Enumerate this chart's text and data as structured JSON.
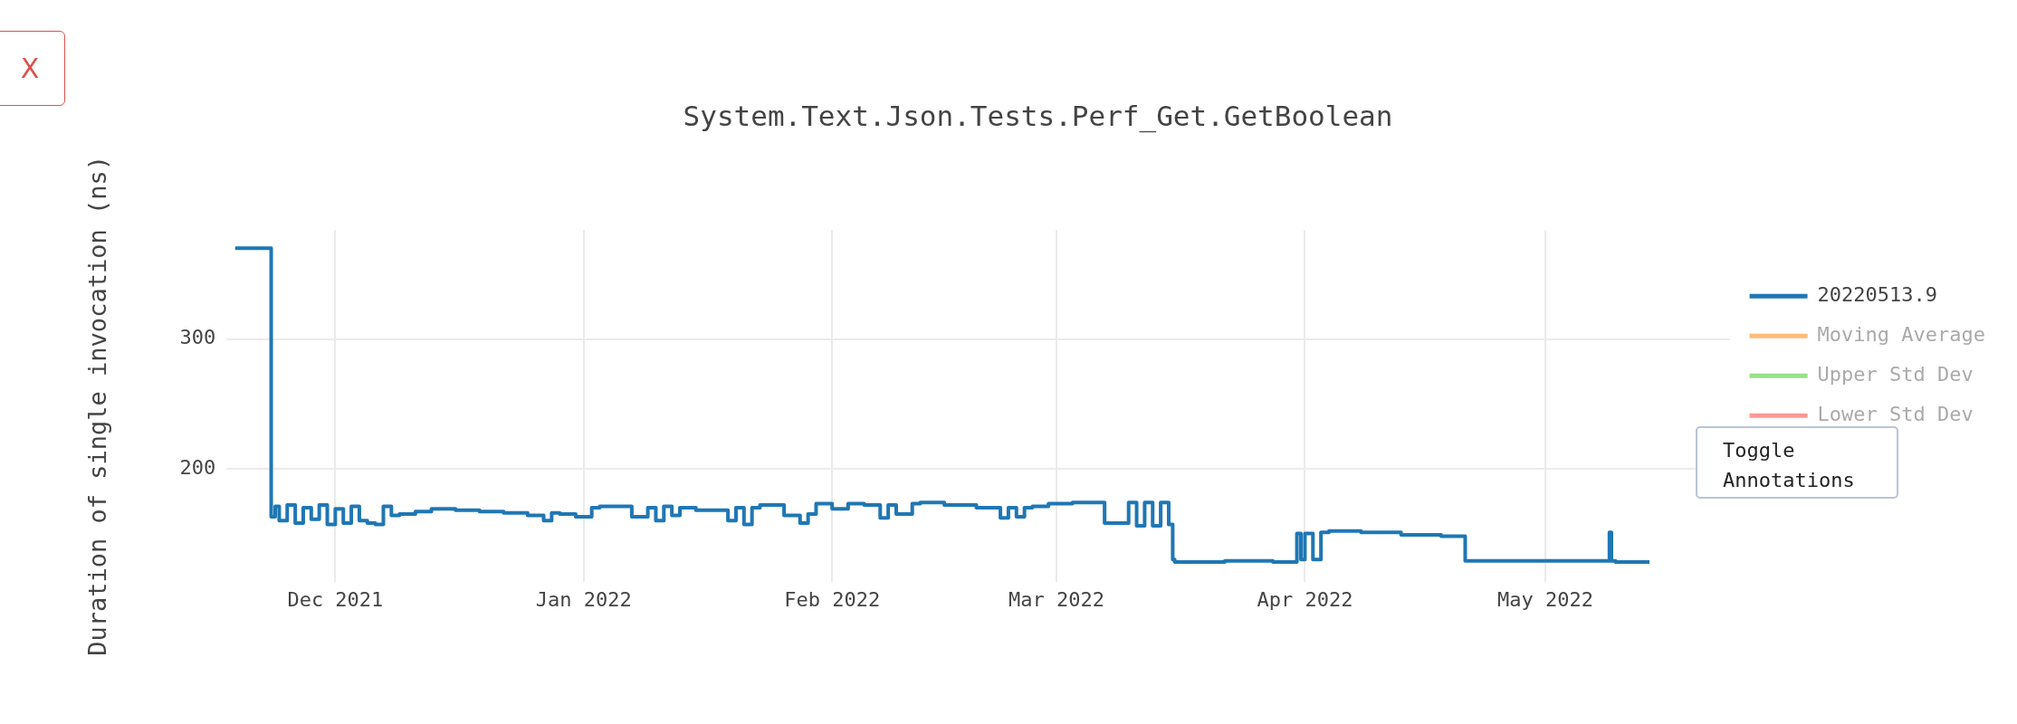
{
  "chart_data": {
    "type": "step",
    "title": "System.Text.Json.Tests.Perf_Get.GetBoolean",
    "ylabel": "Duration of single invocation (ns)",
    "annotations": [
      "X",
      "Toggle Annotations"
    ],
    "x": [
      "2021-11-18T12:00",
      "2021-11-23",
      "2021-11-23T12:00",
      "2021-11-24",
      "2021-11-25",
      "2021-11-26",
      "2021-11-27",
      "2021-11-28",
      "2021-11-29",
      "2021-11-30",
      "2021-12-01",
      "2021-12-02",
      "2021-12-03",
      "2021-12-04",
      "2021-12-05",
      "2021-12-06",
      "2021-12-07",
      "2021-12-08",
      "2021-12-09",
      "2021-12-11",
      "2021-12-13",
      "2021-12-16",
      "2021-12-19",
      "2021-12-22",
      "2021-12-25",
      "2021-12-27",
      "2021-12-28",
      "2021-12-29",
      "2021-12-31",
      "2022-01-02",
      "2022-01-03",
      "2022-01-05",
      "2022-01-07",
      "2022-01-09",
      "2022-01-10",
      "2022-01-11",
      "2022-01-12",
      "2022-01-13",
      "2022-01-15",
      "2022-01-17",
      "2022-01-19",
      "2022-01-20",
      "2022-01-21",
      "2022-01-22",
      "2022-01-23",
      "2022-01-26",
      "2022-01-28",
      "2022-01-29",
      "2022-01-30",
      "2022-02-01",
      "2022-02-03",
      "2022-02-05",
      "2022-02-07",
      "2022-02-08",
      "2022-02-09",
      "2022-02-11",
      "2022-02-12",
      "2022-02-15",
      "2022-02-19",
      "2022-02-22",
      "2022-02-23",
      "2022-02-24",
      "2022-02-25",
      "2022-02-26",
      "2022-02-28",
      "2022-03-03",
      "2022-03-05",
      "2022-03-07",
      "2022-03-07T12:00",
      "2022-03-10",
      "2022-03-11",
      "2022-03-12",
      "2022-03-13",
      "2022-03-14",
      "2022-03-15",
      "2022-03-15T12:00",
      "2022-03-15T18:00",
      "2022-03-18",
      "2022-03-22",
      "2022-03-28",
      "2022-03-31",
      "2022-03-31T12:00",
      "2022-04-01",
      "2022-04-02",
      "2022-04-03",
      "2022-04-04",
      "2022-04-08",
      "2022-04-13",
      "2022-04-18",
      "2022-04-21",
      "2022-04-21T12:00",
      "2022-04-25",
      "2022-05-01",
      "2022-05-05",
      "2022-05-09",
      "2022-05-09T06:00",
      "2022-05-09T18:00",
      "2022-05-14"
    ],
    "series": [
      {
        "name": "20220513.9",
        "color": "#1f77b4",
        "values": [
          370,
          370,
          163,
          171,
          160,
          172,
          158,
          170,
          161,
          172,
          157,
          169,
          158,
          171,
          160,
          158,
          157,
          171,
          164,
          165,
          167,
          169,
          168,
          167,
          166,
          164,
          160,
          166,
          165,
          163,
          170,
          171,
          171,
          163,
          170,
          160,
          171,
          164,
          170,
          168,
          168,
          160,
          170,
          157,
          170,
          172,
          164,
          158,
          165,
          173,
          169,
          173,
          172,
          162,
          172,
          165,
          173,
          174,
          172,
          170,
          162,
          170,
          163,
          170,
          171,
          173,
          174,
          174,
          158,
          158,
          174,
          156,
          174,
          156,
          174,
          157,
          130,
          128,
          128,
          129,
          128,
          150,
          130,
          150,
          130,
          151,
          152,
          151,
          149,
          148,
          129,
          129,
          129,
          129,
          129,
          151,
          129,
          128
        ]
      },
      {
        "name": "Moving Average",
        "color": "#ffbb78",
        "values": [
          null,
          null,
          null,
          null,
          null,
          null,
          null,
          null,
          null,
          null,
          null,
          null,
          null,
          null,
          null,
          null,
          null,
          null,
          null,
          null,
          null,
          null,
          null,
          null,
          null,
          null,
          null,
          null,
          null,
          null,
          null,
          null,
          null,
          null,
          null,
          null,
          null,
          null,
          null,
          null,
          null,
          null,
          null,
          null,
          null,
          null,
          null,
          null,
          null,
          null,
          null,
          null,
          null,
          null,
          null,
          null,
          null,
          null,
          null,
          null,
          null,
          null,
          null,
          null,
          null,
          null,
          null,
          null,
          null,
          null,
          null,
          null,
          null,
          null,
          null,
          null,
          null,
          null,
          null,
          null,
          null,
          null,
          null,
          null,
          null,
          null,
          null,
          null,
          null,
          null,
          null,
          null,
          null,
          null,
          null,
          null,
          null,
          null
        ]
      },
      {
        "name": "Upper Std Dev",
        "color": "#98df8a",
        "values": [
          null,
          null,
          null,
          null,
          null,
          null,
          null,
          null,
          null,
          null,
          null,
          null,
          null,
          null,
          null,
          null,
          null,
          null,
          null,
          null,
          null,
          null,
          null,
          null,
          null,
          null,
          null,
          null,
          null,
          null,
          null,
          null,
          null,
          null,
          null,
          null,
          null,
          null,
          null,
          null,
          null,
          null,
          null,
          null,
          null,
          null,
          null,
          null,
          null,
          null,
          null,
          null,
          null,
          null,
          null,
          null,
          null,
          null,
          null,
          null,
          null,
          null,
          null,
          null,
          null,
          null,
          null,
          null,
          null,
          null,
          null,
          null,
          null,
          null,
          null,
          null,
          null,
          null,
          null,
          null,
          null,
          null,
          null,
          null,
          null,
          null,
          null,
          null,
          null,
          null,
          null,
          null,
          null,
          null,
          null,
          null,
          null,
          null
        ]
      },
      {
        "name": "Lower Std Dev",
        "color": "#ff9896",
        "values": [
          null,
          null,
          null,
          null,
          null,
          null,
          null,
          null,
          null,
          null,
          null,
          null,
          null,
          null,
          null,
          null,
          null,
          null,
          null,
          null,
          null,
          null,
          null,
          null,
          null,
          null,
          null,
          null,
          null,
          null,
          null,
          null,
          null,
          null,
          null,
          null,
          null,
          null,
          null,
          null,
          null,
          null,
          null,
          null,
          null,
          null,
          null,
          null,
          null,
          null,
          null,
          null,
          null,
          null,
          null,
          null,
          null,
          null,
          null,
          null,
          null,
          null,
          null,
          null,
          null,
          null,
          null,
          null,
          null,
          null,
          null,
          null,
          null,
          null,
          null,
          null,
          null,
          null,
          null,
          null,
          null,
          null,
          null,
          null,
          null,
          null,
          null,
          null,
          null,
          null,
          null,
          null,
          null,
          null,
          null,
          null,
          null,
          null
        ]
      }
    ],
    "xlim": [
      "2021-11-17T10:00",
      "2022-05-24"
    ],
    "xticks": [
      {
        "value": "2021-12-01",
        "label": "Dec 2021"
      },
      {
        "value": "2022-01-01",
        "label": "Jan 2022"
      },
      {
        "value": "2022-02-01",
        "label": "Feb 2022"
      },
      {
        "value": "2022-03-01",
        "label": "Mar 2022"
      },
      {
        "value": "2022-04-01",
        "label": "Apr 2022"
      },
      {
        "value": "2022-05-01",
        "label": "May 2022"
      }
    ],
    "ylim": [
      113,
      384
    ],
    "yticks": [
      200,
      300
    ],
    "grid": true,
    "legend": "right",
    "line_style": "solid",
    "marker": "none"
  }
}
